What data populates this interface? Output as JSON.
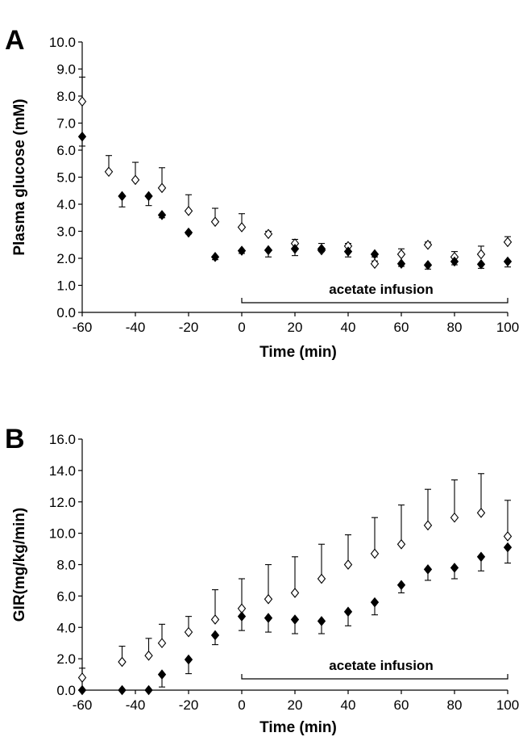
{
  "chart_data": [
    {
      "type": "scatter",
      "panel_label": "A",
      "xlabel": "Time (min)",
      "ylabel": "Plasma glucose (mM)",
      "xlim": [
        -60,
        100
      ],
      "ylim": [
        0,
        10
      ],
      "xticks": [
        "-60",
        "-40",
        "-20",
        "0",
        "20",
        "40",
        "60",
        "80",
        "100"
      ],
      "yticks": [
        "0.0",
        "1.0",
        "2.0",
        "3.0",
        "4.0",
        "5.0",
        "6.0",
        "7.0",
        "8.0",
        "9.0",
        "10.0"
      ],
      "grid": false,
      "annotation": {
        "text": "acetate infusion",
        "x_start": 0,
        "x_end": 100
      },
      "series": [
        {
          "marker": "open-diamond",
          "error_direction": "up",
          "x": [
            -60,
            -50,
            -40,
            -30,
            -20,
            -10,
            0,
            10,
            20,
            30,
            40,
            50,
            60,
            70,
            80,
            90,
            100
          ],
          "values": [
            7.8,
            5.2,
            4.9,
            4.6,
            3.75,
            3.35,
            3.15,
            2.9,
            2.55,
            2.3,
            2.45,
            1.8,
            2.15,
            2.5,
            2.05,
            2.15,
            2.6
          ],
          "errors": [
            0.9,
            0.6,
            0.65,
            0.75,
            0.6,
            0.5,
            0.5,
            0.1,
            0.15,
            0.25,
            0.1,
            0.1,
            0.2,
            0.1,
            0.2,
            0.3,
            0.2
          ]
        },
        {
          "marker": "filled-diamond",
          "error_direction": "down",
          "x": [
            -60,
            -45,
            -35,
            -30,
            -20,
            -10,
            0,
            10,
            20,
            30,
            40,
            50,
            60,
            70,
            80,
            90,
            100
          ],
          "values": [
            6.5,
            4.3,
            4.3,
            3.6,
            2.95,
            2.05,
            2.28,
            2.3,
            2.35,
            2.35,
            2.25,
            2.15,
            1.8,
            1.75,
            1.88,
            1.78,
            1.88
          ],
          "errors": [
            0.35,
            0.4,
            0.35,
            0.1,
            0.05,
            0.1,
            0.1,
            0.25,
            0.25,
            0.1,
            0.2,
            0.1,
            0.1,
            0.15,
            0.12,
            0.15,
            0.2
          ]
        }
      ]
    },
    {
      "type": "scatter",
      "panel_label": "B",
      "xlabel": "Time (min)",
      "ylabel": "GIR(mg/kg/min)",
      "xlim": [
        -60,
        100
      ],
      "ylim": [
        0,
        16
      ],
      "xticks": [
        "-60",
        "-40",
        "-20",
        "0",
        "20",
        "40",
        "60",
        "80",
        "100"
      ],
      "yticks": [
        "0.0",
        "2.0",
        "4.0",
        "6.0",
        "8.0",
        "10.0",
        "12.0",
        "14.0",
        "16.0"
      ],
      "grid": false,
      "annotation": {
        "text": "acetate infusion",
        "x_start": 0,
        "x_end": 100
      },
      "series": [
        {
          "marker": "open-diamond",
          "error_direction": "up",
          "x": [
            -60,
            -45,
            -35,
            -30,
            -20,
            -10,
            0,
            10,
            20,
            30,
            40,
            50,
            60,
            70,
            80,
            90,
            100
          ],
          "values": [
            0.8,
            1.8,
            2.2,
            3.0,
            3.7,
            4.5,
            5.2,
            5.8,
            6.2,
            7.1,
            8.0,
            8.7,
            9.3,
            10.5,
            11.0,
            11.3,
            9.8
          ],
          "errors": [
            0.6,
            1.0,
            1.1,
            1.2,
            1.0,
            1.9,
            1.9,
            2.2,
            2.3,
            2.2,
            1.9,
            2.3,
            2.5,
            2.3,
            2.4,
            2.5,
            2.3
          ]
        },
        {
          "marker": "filled-diamond",
          "error_direction": "down",
          "x": [
            -60,
            -45,
            -35,
            -30,
            -20,
            -10,
            0,
            10,
            20,
            30,
            40,
            50,
            60,
            70,
            80,
            90,
            100
          ],
          "values": [
            0.0,
            0.0,
            0.0,
            1.0,
            1.95,
            3.5,
            4.7,
            4.6,
            4.5,
            4.4,
            5.0,
            5.6,
            6.7,
            7.7,
            7.8,
            8.5,
            9.1
          ],
          "errors": [
            0,
            0,
            0,
            0.8,
            0.9,
            0.6,
            0.9,
            0.9,
            0.9,
            0.8,
            0.9,
            0.8,
            0.5,
            0.7,
            0.7,
            0.9,
            1.0
          ]
        }
      ]
    }
  ]
}
